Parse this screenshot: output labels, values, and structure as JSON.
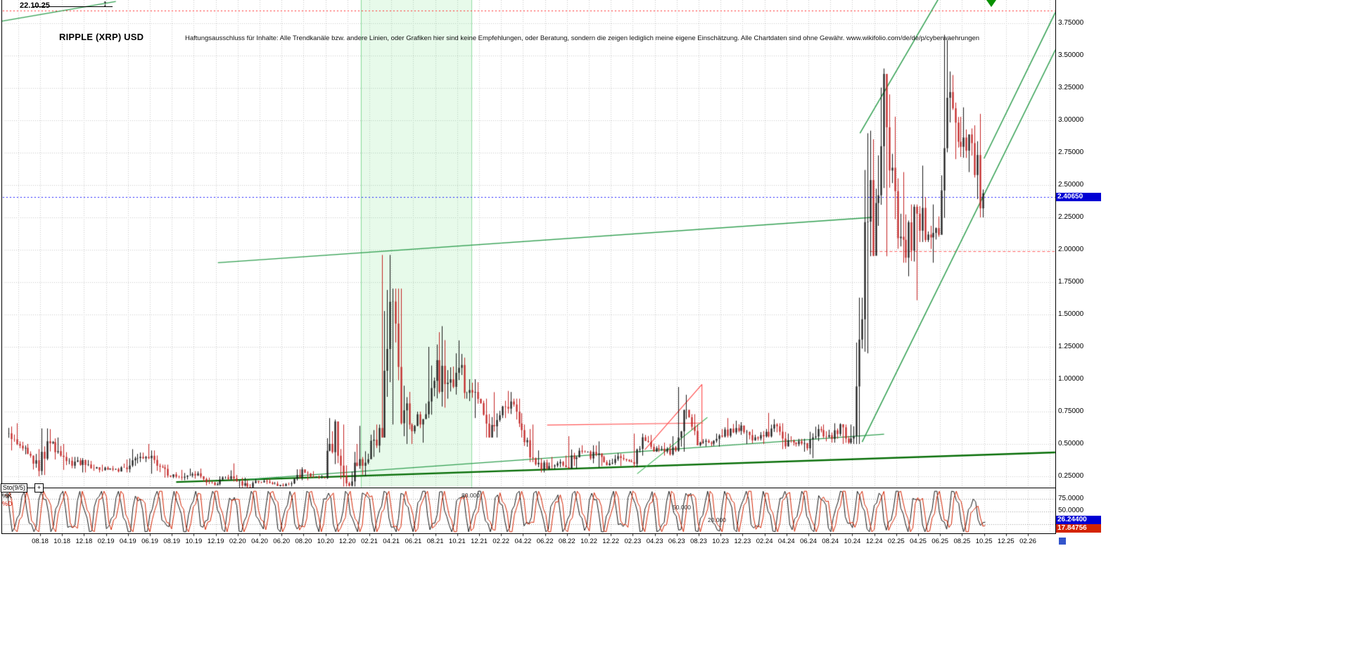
{
  "header": {
    "date_label": "22.10.25",
    "title": "RIPPLE (XRP) USD",
    "disclaimer": "Haftungsausschluss für Inhalte: Alle Trendkanäle bzw. andere Linien, oder Grafiken hier sind keine Empfehlungen, oder Beratung, sondern die zeigen lediglich meine eigene Einschätzung. Alle Chartdaten sind ohne Gewähr.  www.wikifolio.com/de/de/p/cyberwaehrungen",
    "resize_glyph": "↕"
  },
  "price_axis": {
    "ticks": [
      "3.75000",
      "3.50000",
      "3.25000",
      "3.00000",
      "2.75000",
      "2.50000",
      "2.25000",
      "2.00000",
      "1.75000",
      "1.50000",
      "1.25000",
      "1.00000",
      "0.75000",
      "0.50000",
      "0.25000"
    ],
    "current_price_badge": {
      "text": "2.40650",
      "color": "#0000d4"
    }
  },
  "x_axis": {
    "labels": [
      "08.18",
      "10.18",
      "12.18",
      "02.19",
      "04.19",
      "06.19",
      "08.19",
      "10.19",
      "12.19",
      "02.20",
      "04.20",
      "06.20",
      "08.20",
      "10.20",
      "12.20",
      "02.21",
      "04.21",
      "06.21",
      "08.21",
      "10.21",
      "12.21",
      "02.22",
      "04.22",
      "06.22",
      "08.22",
      "10.22",
      "12.22",
      "02.23",
      "04.23",
      "06.23",
      "08.23",
      "10.23",
      "12.23",
      "02.24",
      "04.24",
      "06.24",
      "08.24",
      "10.24",
      "12.24",
      "02.25",
      "04.25",
      "06.25",
      "08.25",
      "10.25",
      "12.25",
      "02.26"
    ]
  },
  "indicator": {
    "name": "Sto(9/5)",
    "expand_symbol": "+",
    "k_label": "%K",
    "d_label": "%D",
    "axis_ticks": [
      "75.0000",
      "50.0000"
    ],
    "k_badge": {
      "text": "26.24400",
      "color": "#0000d4"
    },
    "d_badge": {
      "text": "17.84756",
      "color": "#d42400"
    },
    "level_labels": [
      "80.000",
      "50.000",
      "20.000"
    ],
    "levels": [
      80,
      50,
      20
    ]
  },
  "colors": {
    "up": "#161616",
    "down": "#c22121",
    "grid": "#c9c9c9",
    "band_fill": "rgba(120,225,140,0.18)",
    "band_edge": "rgba(60,190,90,0.55)",
    "badge_blue": "#0000d4",
    "badge_red": "#d42400"
  },
  "chart_data": {
    "type": "candlestick",
    "title": "RIPPLE (XRP) USD",
    "x_unit": "months since 2018-08 (t=0 -> 08.2018)",
    "xlim": [
      -3.4,
      92.6
    ],
    "ylim": [
      0.1,
      3.9
    ],
    "current_price": 2.4065,
    "price_monthly_t_low_high_close": [
      [
        -3,
        0.5,
        0.95,
        0.58
      ],
      [
        -2,
        0.45,
        0.66,
        0.47
      ],
      [
        -1,
        0.42,
        0.52,
        0.44
      ],
      [
        0,
        0.25,
        0.46,
        0.33
      ],
      [
        1,
        0.26,
        0.62,
        0.5
      ],
      [
        2,
        0.38,
        0.55,
        0.45
      ],
      [
        3,
        0.3,
        0.5,
        0.36
      ],
      [
        4,
        0.28,
        0.4,
        0.35
      ],
      [
        5,
        0.28,
        0.38,
        0.31
      ],
      [
        6,
        0.28,
        0.34,
        0.31
      ],
      [
        7,
        0.29,
        0.33,
        0.31
      ],
      [
        8,
        0.28,
        0.38,
        0.32
      ],
      [
        9,
        0.28,
        0.46,
        0.42
      ],
      [
        10,
        0.36,
        0.5,
        0.41
      ],
      [
        11,
        0.27,
        0.45,
        0.32
      ],
      [
        12,
        0.24,
        0.34,
        0.26
      ],
      [
        13,
        0.22,
        0.3,
        0.25
      ],
      [
        14,
        0.22,
        0.31,
        0.29
      ],
      [
        15,
        0.21,
        0.31,
        0.22
      ],
      [
        16,
        0.18,
        0.24,
        0.19
      ],
      [
        17,
        0.18,
        0.25,
        0.24
      ],
      [
        18,
        0.21,
        0.35,
        0.23
      ],
      [
        19,
        0.11,
        0.24,
        0.17
      ],
      [
        20,
        0.16,
        0.23,
        0.21
      ],
      [
        21,
        0.19,
        0.23,
        0.2
      ],
      [
        22,
        0.17,
        0.21,
        0.18
      ],
      [
        23,
        0.17,
        0.21,
        0.2
      ],
      [
        24,
        0.19,
        0.32,
        0.28
      ],
      [
        25,
        0.22,
        0.29,
        0.24
      ],
      [
        26,
        0.23,
        0.26,
        0.24
      ],
      [
        27,
        0.23,
        0.7,
        0.6
      ],
      [
        28,
        0.17,
        0.65,
        0.21
      ],
      [
        29,
        0.17,
        0.5,
        0.3
      ],
      [
        30,
        0.25,
        0.64,
        0.43
      ],
      [
        31,
        0.4,
        0.65,
        0.57
      ],
      [
        32,
        0.55,
        1.96,
        1.55
      ],
      [
        33,
        0.65,
        1.7,
        0.9
      ],
      [
        34,
        0.5,
        0.95,
        0.68
      ],
      [
        35,
        0.51,
        0.75,
        0.72
      ],
      [
        36,
        0.7,
        1.25,
        1.1
      ],
      [
        37,
        0.78,
        1.41,
        0.93
      ],
      [
        38,
        0.85,
        1.2,
        1.05
      ],
      [
        39,
        0.85,
        1.3,
        0.95
      ],
      [
        40,
        0.7,
        1.0,
        0.82
      ],
      [
        41,
        0.55,
        0.85,
        0.6
      ],
      [
        42,
        0.55,
        0.9,
        0.75
      ],
      [
        43,
        0.7,
        0.91,
        0.82
      ],
      [
        44,
        0.55,
        0.85,
        0.6
      ],
      [
        45,
        0.36,
        0.65,
        0.4
      ],
      [
        46,
        0.28,
        0.45,
        0.32
      ],
      [
        47,
        0.3,
        0.4,
        0.35
      ],
      [
        48,
        0.32,
        0.41,
        0.33
      ],
      [
        49,
        0.31,
        0.56,
        0.43
      ],
      [
        50,
        0.42,
        0.49,
        0.45
      ],
      [
        51,
        0.32,
        0.52,
        0.4
      ],
      [
        52,
        0.33,
        0.41,
        0.34
      ],
      [
        53,
        0.33,
        0.43,
        0.4
      ],
      [
        54,
        0.36,
        0.42,
        0.37
      ],
      [
        55,
        0.32,
        0.58,
        0.53
      ],
      [
        56,
        0.44,
        0.57,
        0.46
      ],
      [
        57,
        0.41,
        0.51,
        0.44
      ],
      [
        58,
        0.41,
        0.56,
        0.47
      ],
      [
        59,
        0.44,
        0.94,
        0.7
      ],
      [
        60,
        0.49,
        0.73,
        0.52
      ],
      [
        61,
        0.48,
        0.54,
        0.52
      ],
      [
        62,
        0.48,
        0.58,
        0.55
      ],
      [
        63,
        0.55,
        0.7,
        0.61
      ],
      [
        64,
        0.57,
        0.68,
        0.62
      ],
      [
        65,
        0.5,
        0.64,
        0.53
      ],
      [
        66,
        0.5,
        0.6,
        0.55
      ],
      [
        67,
        0.55,
        0.74,
        0.63
      ],
      [
        68,
        0.46,
        0.66,
        0.51
      ],
      [
        69,
        0.48,
        0.58,
        0.52
      ],
      [
        70,
        0.44,
        0.54,
        0.48
      ],
      [
        71,
        0.39,
        0.65,
        0.6
      ],
      [
        72,
        0.52,
        0.65,
        0.56
      ],
      [
        73,
        0.51,
        0.66,
        0.62
      ],
      [
        74,
        0.5,
        0.65,
        0.51
      ],
      [
        75,
        0.5,
        1.63,
        1.45
      ],
      [
        75.5,
        1.2,
        2.9,
        2.6
      ],
      [
        76,
        1.95,
        2.92,
        2.08
      ],
      [
        77,
        1.96,
        3.4,
        3.05
      ],
      [
        78,
        1.95,
        3.2,
        2.15
      ],
      [
        79,
        1.9,
        2.6,
        2.08
      ],
      [
        80,
        1.61,
        2.35,
        2.22
      ],
      [
        81,
        2.06,
        2.65,
        2.15
      ],
      [
        82,
        1.9,
        2.35,
        2.2
      ],
      [
        83,
        2.15,
        3.66,
        3.0
      ],
      [
        84,
        2.7,
        3.35,
        2.85
      ],
      [
        85,
        2.6,
        3.1,
        2.85
      ],
      [
        86,
        2.25,
        3.05,
        2.4065
      ]
    ],
    "overlays": {
      "band": {
        "t0": 29.2,
        "t1": 39.3,
        "note": "highlighted period 01.21-11.21"
      },
      "hlines": [
        {
          "p": 3.85,
          "color": "#ff2a2a",
          "dash": [
            2,
            3
          ],
          "w": 1
        },
        {
          "p": 2.4065,
          "color": "#2020ff",
          "dash": [
            2,
            3
          ],
          "w": 1
        },
        {
          "p": 1.99,
          "color": "#ff6060",
          "dash": [
            4,
            3
          ],
          "w": 1.2,
          "t0": 75.6,
          "t1": 92.6
        }
      ],
      "trendlines": [
        {
          "name": "long-resistance",
          "t0": 16.2,
          "p0": 1.9,
          "t1": 75.8,
          "p1": 2.25,
          "color": "#2f9e4f",
          "w": 1.4
        },
        {
          "name": "major-support",
          "t0": 12.4,
          "p0": 0.206,
          "t1": 92.6,
          "p1": 0.435,
          "color": "#066d06",
          "w": 2.4
        },
        {
          "name": "mid-support",
          "t0": 19.1,
          "p0": 0.228,
          "t1": 76.9,
          "p1": 0.575,
          "color": "#2f9e4f",
          "w": 1.3
        },
        {
          "name": "wedge-line",
          "t0": 54.4,
          "p0": 0.27,
          "t1": 60.8,
          "p1": 0.705,
          "color": "#3fb45a",
          "w": 1.1
        },
        {
          "name": "steep-channel-lower",
          "t0": 74.9,
          "p0": 0.516,
          "t1": 92.6,
          "p1": 3.56,
          "color": "#2f9e4f",
          "w": 1.5
        },
        {
          "name": "steep-channel-upper",
          "t0": 74.7,
          "p0": 2.9,
          "t1": 81.8,
          "p1": 3.93,
          "color": "#2f9e4f",
          "w": 1.5
        },
        {
          "name": "steep-channel-right",
          "t0": 86.0,
          "p0": 2.705,
          "t1": 92.6,
          "p1": 3.85,
          "color": "#2f9e4f",
          "w": 1.5
        },
        {
          "name": "red-rally-line",
          "t0": 55.1,
          "p0": 0.456,
          "t1": 60.3,
          "p1": 0.96,
          "color": "#ff4444",
          "w": 1.1
        },
        {
          "name": "red-spike-drop",
          "t0": 60.3,
          "p0": 0.5,
          "t1": 60.3,
          "p1": 0.96,
          "color": "#ff4444",
          "w": 1.1
        },
        {
          "name": "red-flat-segment",
          "t0": 46.2,
          "p0": 0.646,
          "t1": 60.4,
          "p1": 0.662,
          "color": "#ff5555",
          "w": 1.1
        },
        {
          "name": "topleft-green-line",
          "t0": -3.5,
          "p0": 3.766,
          "t1": 6.9,
          "p1": 3.918,
          "color": "#2f9e4f",
          "w": 1.2
        }
      ]
    },
    "stochastic": {
      "params": "9/5",
      "range": [
        0,
        100
      ],
      "levels": [
        80,
        50,
        20
      ],
      "k_last": 26.244,
      "d_last": 17.84756,
      "note": "dense oscillation between ~5 and ~95 over whole period"
    }
  }
}
